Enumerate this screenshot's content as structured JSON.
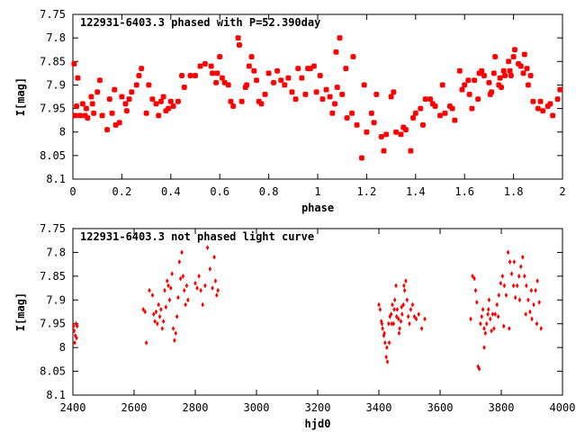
{
  "color": "#ff0000",
  "chart_data": [
    {
      "type": "scatter",
      "title": "122931-6403.3 phased with P=52.390day",
      "xlabel": "phase",
      "ylabel": "I[mag]",
      "xlim": [
        0,
        2
      ],
      "ylim": [
        7.75,
        8.1
      ],
      "y_inverted": true,
      "grid": false,
      "legend": "none",
      "marker": "asterisk",
      "xticks": [
        "0",
        "0.2",
        "0.4",
        "0.6",
        "0.8",
        "1",
        "1.2",
        "1.4",
        "1.6",
        "1.8",
        "2"
      ],
      "yticks": [
        "7.75",
        "7.8",
        "7.85",
        "7.9",
        "7.95",
        "8",
        "8.05",
        "8.1"
      ],
      "points": [
        [
          0.005,
          7.855
        ],
        [
          0.01,
          7.965
        ],
        [
          0.015,
          7.945
        ],
        [
          0.02,
          7.885
        ],
        [
          0.03,
          7.965
        ],
        [
          0.04,
          7.94
        ],
        [
          0.05,
          7.965
        ],
        [
          0.055,
          7.95
        ],
        [
          0.06,
          7.97
        ],
        [
          0.075,
          7.925
        ],
        [
          0.08,
          7.94
        ],
        [
          0.085,
          7.96
        ],
        [
          0.1,
          7.915
        ],
        [
          0.11,
          7.89
        ],
        [
          0.12,
          7.965
        ],
        [
          0.14,
          7.995
        ],
        [
          0.15,
          7.93
        ],
        [
          0.16,
          7.96
        ],
        [
          0.17,
          7.91
        ],
        [
          0.175,
          7.985
        ],
        [
          0.19,
          7.98
        ],
        [
          0.2,
          7.925
        ],
        [
          0.215,
          7.94
        ],
        [
          0.22,
          7.955
        ],
        [
          0.23,
          7.93
        ],
        [
          0.24,
          7.915
        ],
        [
          0.26,
          7.9
        ],
        [
          0.27,
          7.88
        ],
        [
          0.28,
          7.865
        ],
        [
          0.3,
          7.96
        ],
        [
          0.31,
          7.9
        ],
        [
          0.325,
          7.93
        ],
        [
          0.34,
          7.94
        ],
        [
          0.35,
          7.965
        ],
        [
          0.36,
          7.935
        ],
        [
          0.37,
          7.925
        ],
        [
          0.38,
          7.955
        ],
        [
          0.39,
          7.95
        ],
        [
          0.4,
          7.935
        ],
        [
          0.41,
          7.945
        ],
        [
          0.43,
          7.935
        ],
        [
          0.445,
          7.88
        ],
        [
          0.455,
          7.905
        ],
        [
          0.48,
          7.88
        ],
        [
          0.5,
          7.88
        ],
        [
          0.52,
          7.86
        ],
        [
          0.54,
          7.855
        ],
        [
          0.565,
          7.86
        ],
        [
          0.57,
          7.875
        ],
        [
          0.585,
          7.895
        ],
        [
          0.59,
          7.875
        ],
        [
          0.6,
          7.84
        ],
        [
          0.61,
          7.885
        ],
        [
          0.62,
          7.895
        ],
        [
          0.635,
          7.9
        ],
        [
          0.645,
          7.935
        ],
        [
          0.655,
          7.945
        ],
        [
          0.675,
          7.8
        ],
        [
          0.68,
          7.815
        ],
        [
          0.69,
          7.935
        ],
        [
          0.705,
          7.905
        ],
        [
          0.71,
          7.9
        ],
        [
          0.72,
          7.86
        ],
        [
          0.73,
          7.84
        ],
        [
          0.74,
          7.87
        ],
        [
          0.75,
          7.89
        ],
        [
          0.76,
          7.935
        ],
        [
          0.77,
          7.94
        ],
        [
          0.785,
          7.92
        ],
        [
          0.8,
          7.875
        ],
        [
          0.82,
          7.895
        ],
        [
          0.835,
          7.87
        ],
        [
          0.85,
          7.89
        ],
        [
          0.865,
          7.9
        ],
        [
          0.88,
          7.885
        ],
        [
          0.895,
          7.915
        ],
        [
          0.91,
          7.93
        ],
        [
          0.92,
          7.865
        ],
        [
          0.935,
          7.885
        ],
        [
          0.95,
          7.92
        ],
        [
          0.96,
          7.865
        ],
        [
          0.97,
          7.865
        ],
        [
          0.985,
          7.86
        ],
        [
          0.995,
          7.915
        ],
        [
          1.01,
          7.88
        ],
        [
          1.02,
          7.93
        ],
        [
          1.035,
          7.91
        ],
        [
          1.05,
          7.925
        ],
        [
          1.06,
          7.96
        ],
        [
          1.07,
          7.94
        ],
        [
          1.08,
          7.905
        ],
        [
          1.09,
          7.8
        ],
        [
          1.1,
          7.92
        ],
        [
          1.12,
          7.97
        ],
        [
          1.14,
          7.96
        ],
        [
          1.16,
          7.985
        ],
        [
          1.18,
          8.055
        ],
        [
          1.2,
          8
        ],
        [
          1.22,
          7.96
        ],
        [
          1.24,
          7.92
        ],
        [
          1.26,
          8.01
        ],
        [
          1.28,
          8.005
        ],
        [
          1.3,
          7.925
        ],
        [
          1.32,
          8
        ],
        [
          1.34,
          8.005
        ],
        [
          1.36,
          7.995
        ],
        [
          1.38,
          8.04
        ],
        [
          1.4,
          7.96
        ],
        [
          1.42,
          7.95
        ],
        [
          1.44,
          7.93
        ],
        [
          1.46,
          7.93
        ],
        [
          1.48,
          7.945
        ],
        [
          1.5,
          7.965
        ],
        [
          1.52,
          7.96
        ],
        [
          1.54,
          7.945
        ],
        [
          1.56,
          7.975
        ],
        [
          1.58,
          7.87
        ],
        [
          1.6,
          7.9
        ],
        [
          1.62,
          7.92
        ],
        [
          1.64,
          7.89
        ],
        [
          1.66,
          7.875
        ],
        [
          1.68,
          7.88
        ],
        [
          1.7,
          7.895
        ],
        [
          1.72,
          7.875
        ],
        [
          1.74,
          7.9
        ],
        [
          1.76,
          7.87
        ],
        [
          1.78,
          7.85
        ],
        [
          1.8,
          7.84
        ],
        [
          1.82,
          7.855
        ],
        [
          1.84,
          7.875
        ],
        [
          1.86,
          7.9
        ],
        [
          1.88,
          7.935
        ],
        [
          1.9,
          7.95
        ],
        [
          1.92,
          7.955
        ],
        [
          1.94,
          7.945
        ],
        [
          1.96,
          7.965
        ],
        [
          1.98,
          7.93
        ],
        [
          1.075,
          7.83
        ],
        [
          1.115,
          7.865
        ],
        [
          1.145,
          7.84
        ],
        [
          1.19,
          7.9
        ],
        [
          1.23,
          7.98
        ],
        [
          1.27,
          8.04
        ],
        [
          1.31,
          7.915
        ],
        [
          1.35,
          7.99
        ],
        [
          1.39,
          7.97
        ],
        [
          1.43,
          7.985
        ],
        [
          1.47,
          7.94
        ],
        [
          1.51,
          7.9
        ],
        [
          1.55,
          7.95
        ],
        [
          1.59,
          7.91
        ],
        [
          1.63,
          7.95
        ],
        [
          1.67,
          7.87
        ],
        [
          1.71,
          7.915
        ],
        [
          1.75,
          7.905
        ],
        [
          1.79,
          7.88
        ],
        [
          1.83,
          7.86
        ],
        [
          1.87,
          7.88
        ],
        [
          1.91,
          7.935
        ],
        [
          1.95,
          7.94
        ],
        [
          1.99,
          7.91
        ],
        [
          1.805,
          7.825
        ],
        [
          1.845,
          7.835
        ],
        [
          1.725,
          7.84
        ],
        [
          1.765,
          7.88
        ],
        [
          1.855,
          7.865
        ],
        [
          1.655,
          7.93
        ],
        [
          1.615,
          7.89
        ],
        [
          1.705,
          7.92
        ],
        [
          1.745,
          7.885
        ],
        [
          1.785,
          7.87
        ]
      ]
    },
    {
      "type": "scatter",
      "title": "122931-6403.3 not phased light curve",
      "xlabel": "hjd0",
      "ylabel": "I[mag]",
      "xlim": [
        2400,
        4000
      ],
      "ylim": [
        7.75,
        8.1
      ],
      "y_inverted": true,
      "grid": false,
      "legend": "none",
      "marker": "diamond",
      "xticks": [
        "2400",
        "2600",
        "2800",
        "3000",
        "3200",
        "3400",
        "3600",
        "3800",
        "4000"
      ],
      "yticks": [
        "7.75",
        "7.8",
        "7.85",
        "7.9",
        "7.95",
        "8",
        "8.05",
        "8.1"
      ],
      "points": [
        [
          2402,
          7.955
        ],
        [
          2404,
          7.965
        ],
        [
          2406,
          7.99
        ],
        [
          2408,
          7.975
        ],
        [
          2410,
          7.95
        ],
        [
          2412,
          7.98
        ],
        [
          2414,
          7.955
        ],
        [
          2630,
          7.92
        ],
        [
          2636,
          7.925
        ],
        [
          2640,
          7.99
        ],
        [
          2650,
          7.88
        ],
        [
          2660,
          7.89
        ],
        [
          2664,
          7.93
        ],
        [
          2668,
          7.945
        ],
        [
          2672,
          7.925
        ],
        [
          2676,
          7.95
        ],
        [
          2680,
          7.91
        ],
        [
          2684,
          7.935
        ],
        [
          2688,
          7.92
        ],
        [
          2692,
          7.96
        ],
        [
          2696,
          7.945
        ],
        [
          2700,
          7.88
        ],
        [
          2704,
          7.915
        ],
        [
          2708,
          7.86
        ],
        [
          2712,
          7.87
        ],
        [
          2716,
          7.9
        ],
        [
          2720,
          7.875
        ],
        [
          2724,
          7.845
        ],
        [
          2728,
          7.96
        ],
        [
          2732,
          7.985
        ],
        [
          2736,
          7.97
        ],
        [
          2740,
          7.935
        ],
        [
          2744,
          7.895
        ],
        [
          2748,
          7.82
        ],
        [
          2752,
          7.855
        ],
        [
          2756,
          7.8
        ],
        [
          2760,
          7.85
        ],
        [
          2764,
          7.88
        ],
        [
          2768,
          7.91
        ],
        [
          2772,
          7.87
        ],
        [
          2776,
          7.9
        ],
        [
          2800,
          7.865
        ],
        [
          2806,
          7.875
        ],
        [
          2812,
          7.85
        ],
        [
          2818,
          7.88
        ],
        [
          2824,
          7.91
        ],
        [
          2832,
          7.87
        ],
        [
          2840,
          7.79
        ],
        [
          2848,
          7.835
        ],
        [
          2856,
          7.875
        ],
        [
          2862,
          7.81
        ],
        [
          2866,
          7.86
        ],
        [
          2870,
          7.89
        ],
        [
          2874,
          7.88
        ],
        [
          3400,
          7.91
        ],
        [
          3404,
          7.92
        ],
        [
          3408,
          7.945
        ],
        [
          3412,
          7.96
        ],
        [
          3416,
          7.975
        ],
        [
          3420,
          7.99
        ],
        [
          3424,
          8.02
        ],
        [
          3428,
          8.03
        ],
        [
          3432,
          7.95
        ],
        [
          3436,
          7.935
        ],
        [
          3440,
          7.93
        ],
        [
          3444,
          7.91
        ],
        [
          3448,
          7.95
        ],
        [
          3452,
          7.9
        ],
        [
          3456,
          7.87
        ],
        [
          3460,
          7.92
        ],
        [
          3464,
          7.94
        ],
        [
          3468,
          7.96
        ],
        [
          3472,
          7.945
        ],
        [
          3476,
          7.93
        ],
        [
          3480,
          7.91
        ],
        [
          3484,
          7.88
        ],
        [
          3488,
          7.86
        ],
        [
          3492,
          7.9
        ],
        [
          3496,
          7.935
        ],
        [
          3500,
          7.95
        ],
        [
          3504,
          7.92
        ],
        [
          3510,
          7.91
        ],
        [
          3516,
          7.935
        ],
        [
          3522,
          7.94
        ],
        [
          3530,
          7.93
        ],
        [
          3540,
          7.96
        ],
        [
          3550,
          7.94
        ],
        [
          3410,
          7.95
        ],
        [
          3418,
          7.97
        ],
        [
          3426,
          8
        ],
        [
          3434,
          7.99
        ],
        [
          3442,
          7.95
        ],
        [
          3450,
          7.92
        ],
        [
          3458,
          7.935
        ],
        [
          3466,
          7.97
        ],
        [
          3474,
          7.915
        ],
        [
          3482,
          7.87
        ],
        [
          3700,
          7.94
        ],
        [
          3706,
          7.85
        ],
        [
          3712,
          7.855
        ],
        [
          3716,
          7.88
        ],
        [
          3720,
          7.905
        ],
        [
          3724,
          8.04
        ],
        [
          3728,
          8.045
        ],
        [
          3732,
          7.95
        ],
        [
          3736,
          7.935
        ],
        [
          3740,
          7.92
        ],
        [
          3744,
          7.96
        ],
        [
          3748,
          7.97
        ],
        [
          3752,
          7.95
        ],
        [
          3756,
          7.93
        ],
        [
          3760,
          7.9
        ],
        [
          3764,
          7.94
        ],
        [
          3768,
          7.965
        ],
        [
          3772,
          7.93
        ],
        [
          3776,
          7.96
        ],
        [
          3780,
          7.93
        ],
        [
          3786,
          7.91
        ],
        [
          3792,
          7.89
        ],
        [
          3798,
          7.865
        ],
        [
          3804,
          7.85
        ],
        [
          3810,
          7.87
        ],
        [
          3816,
          7.89
        ],
        [
          3822,
          7.8
        ],
        [
          3828,
          7.82
        ],
        [
          3834,
          7.845
        ],
        [
          3840,
          7.87
        ],
        [
          3846,
          7.895
        ],
        [
          3852,
          7.87
        ],
        [
          3858,
          7.85
        ],
        [
          3864,
          7.83
        ],
        [
          3870,
          7.81
        ],
        [
          3876,
          7.85
        ],
        [
          3882,
          7.87
        ],
        [
          3888,
          7.9
        ],
        [
          3894,
          7.925
        ],
        [
          3900,
          7.94
        ],
        [
          3906,
          7.91
        ],
        [
          3912,
          7.88
        ],
        [
          3918,
          7.86
        ],
        [
          3924,
          7.905
        ],
        [
          3930,
          7.96
        ],
        [
          3744,
          8
        ],
        [
          3758,
          7.92
        ],
        [
          3790,
          7.935
        ],
        [
          3808,
          7.955
        ],
        [
          3826,
          7.96
        ],
        [
          3842,
          7.82
        ],
        [
          3860,
          7.9
        ],
        [
          3880,
          7.93
        ],
        [
          3898,
          7.88
        ],
        [
          3916,
          7.95
        ]
      ]
    }
  ]
}
